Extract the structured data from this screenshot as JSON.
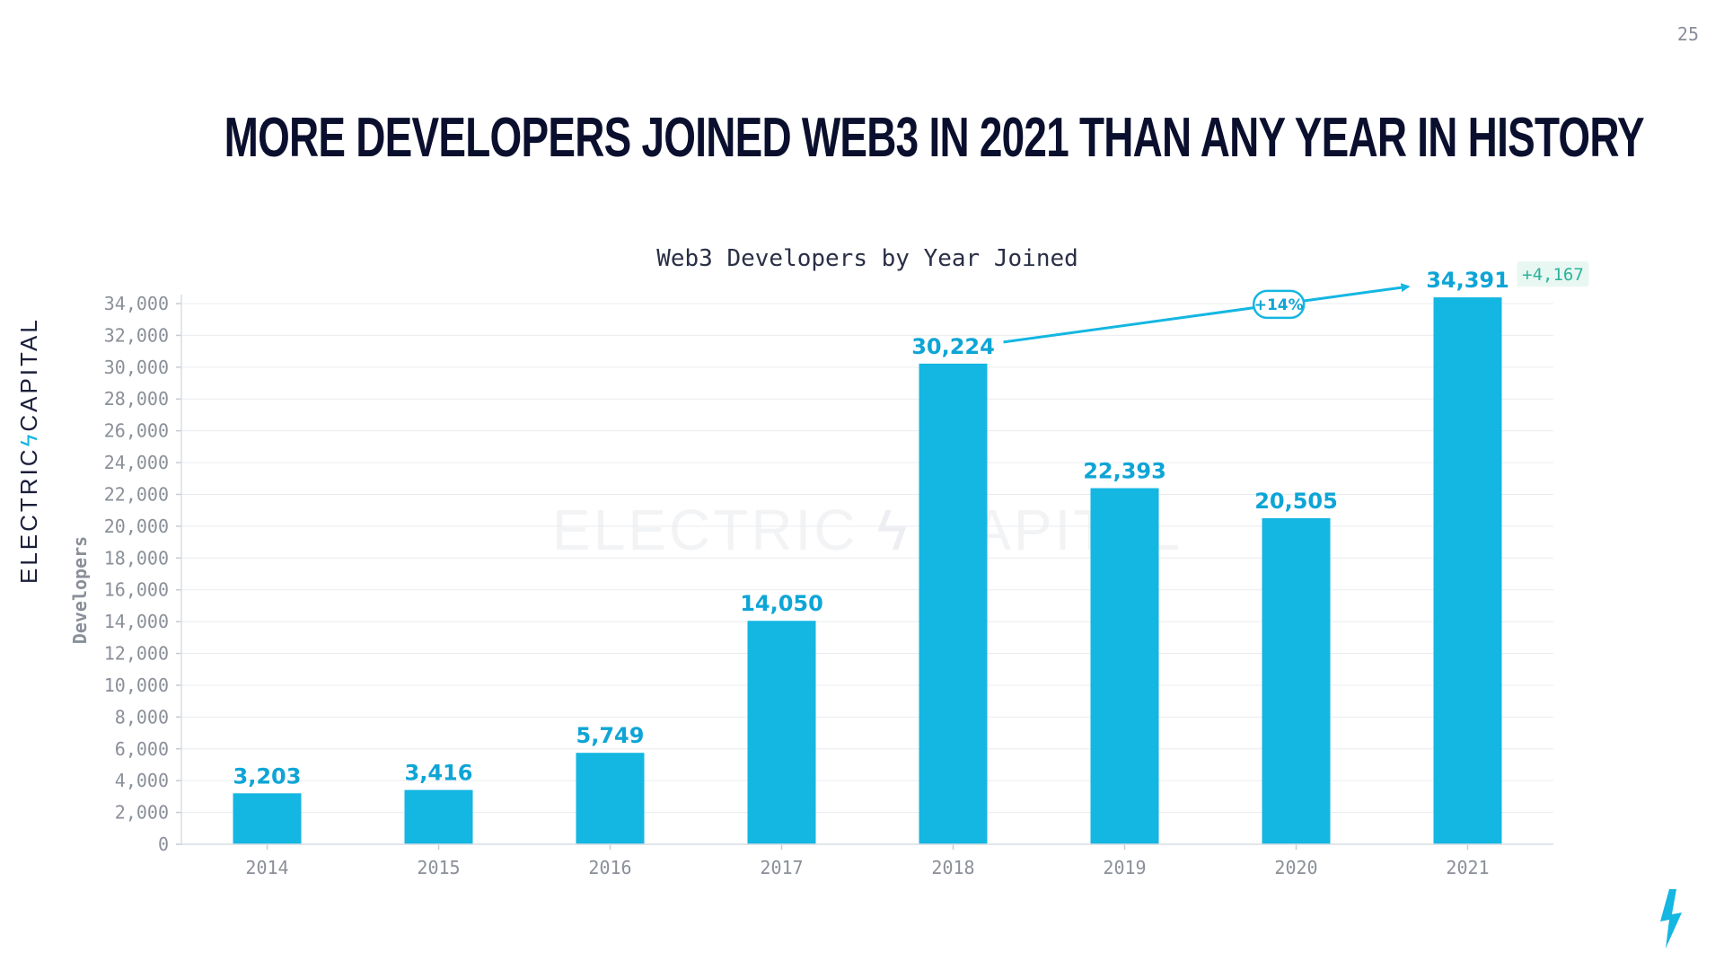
{
  "page": {
    "number": "25",
    "headline": "More developers joined web3 in 2021 than any year in history",
    "brand_left": "ELECTRIC",
    "brand_right": "CAPITAL",
    "watermark_left": "ELECTRIC",
    "watermark_right": "CAPITAL",
    "icons": [
      "lightning-bolt-icon"
    ]
  },
  "colors": {
    "bar": "#14b6e2",
    "bar_label": "#0ea5d6",
    "headline": "#0b0f2e",
    "axis_text": "#8a8f98",
    "grid": "#e9ecef",
    "delta_text": "#2bb39a",
    "delta_bg": "#e8f7f2"
  },
  "chart_data": {
    "type": "bar",
    "title": "Web3 Developers by Year Joined",
    "xlabel": "",
    "ylabel": "Developers",
    "categories": [
      "2014",
      "2015",
      "2016",
      "2017",
      "2018",
      "2019",
      "2020",
      "2021"
    ],
    "values": [
      3203,
      3416,
      5749,
      14050,
      30224,
      22393,
      20505,
      34391
    ],
    "value_labels": [
      "3,203",
      "3,416",
      "5,749",
      "14,050",
      "30,224",
      "22,393",
      "20,505",
      "34,391"
    ],
    "yticks": [
      0,
      2000,
      4000,
      6000,
      8000,
      10000,
      12000,
      14000,
      16000,
      18000,
      20000,
      22000,
      24000,
      26000,
      28000,
      30000,
      32000,
      34000
    ],
    "ytick_labels": [
      "0",
      "2,000",
      "4,000",
      "6,000",
      "8,000",
      "10,000",
      "12,000",
      "14,000",
      "16,000",
      "18,000",
      "20,000",
      "22,000",
      "24,000",
      "26,000",
      "28,000",
      "30,000",
      "32,000",
      "34,000"
    ],
    "ylim": [
      0,
      34000
    ],
    "grid": true,
    "legend": "none",
    "annotations": {
      "growth_label": "+14%",
      "growth_from": "2018",
      "growth_to": "2021",
      "delta_label": "+4,167",
      "delta_category": "2021"
    }
  }
}
